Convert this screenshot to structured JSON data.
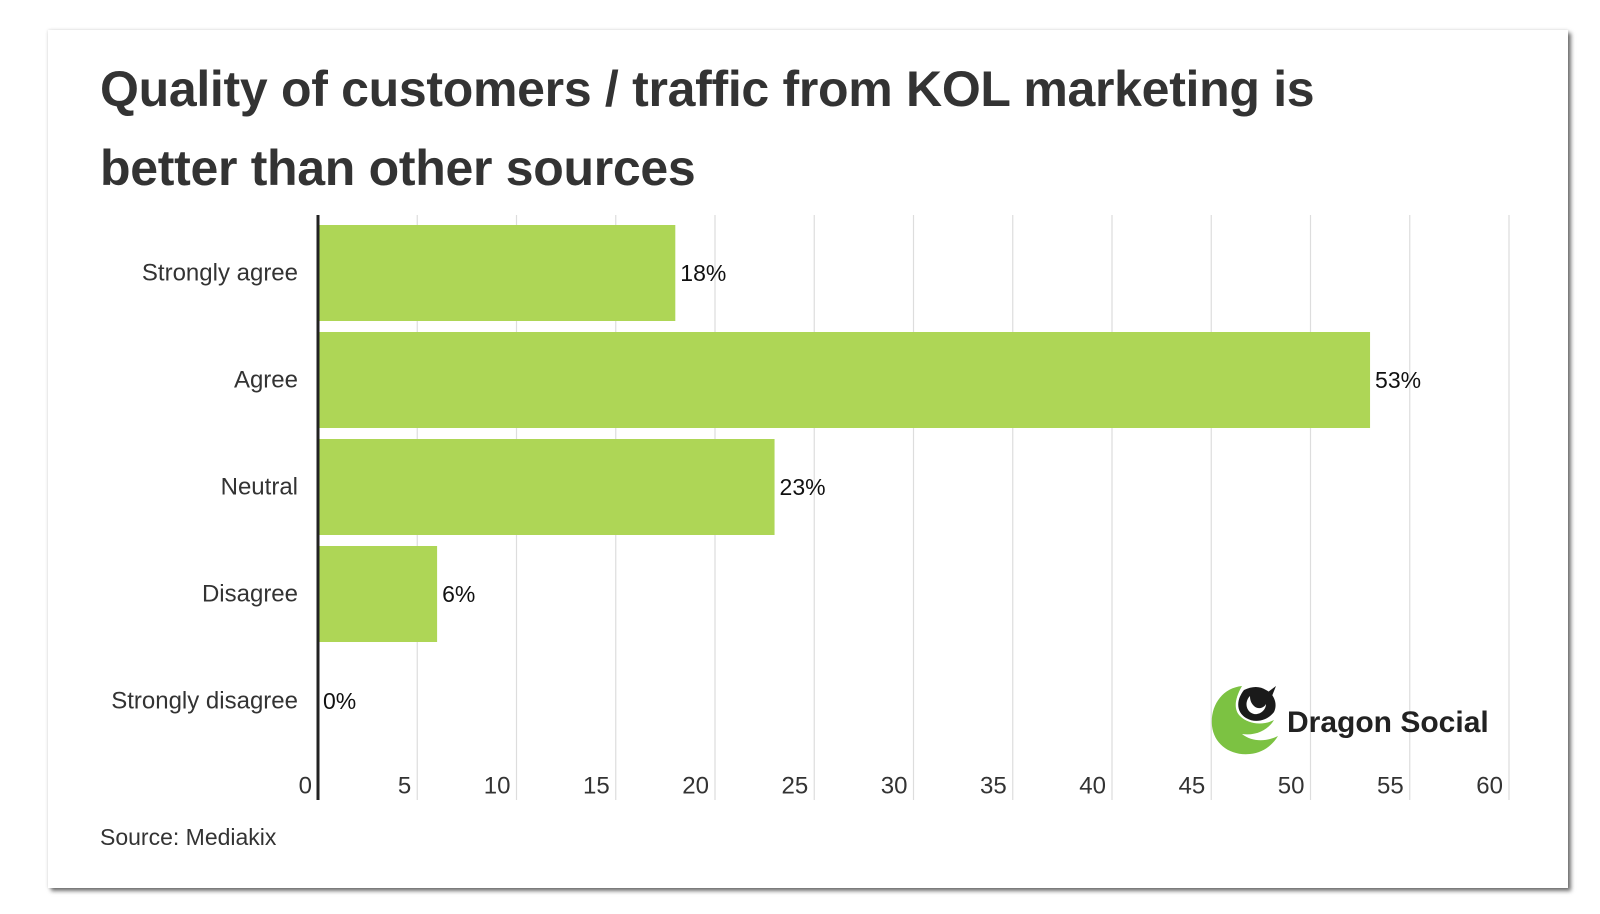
{
  "title_lines": [
    "Quality of customers / traffic from KOL marketing is",
    "better than other sources"
  ],
  "source": "Source: Mediakix",
  "logo": {
    "text": "Dragon Social",
    "icon": "dragon-head-icon"
  },
  "colors": {
    "bar": "#AED656",
    "text": "#333333",
    "grid": "#DDDDDD",
    "axis": "#222222",
    "logo_green": "#7CC242"
  },
  "chart_data": {
    "type": "bar",
    "orientation": "horizontal",
    "title": "Quality of customers / traffic from KOL marketing is better than other sources",
    "categories": [
      "Strongly agree",
      "Agree",
      "Neutral",
      "Disagree",
      "Strongly disagree"
    ],
    "values": [
      18,
      53,
      23,
      6,
      0
    ],
    "data_labels": [
      "18%",
      "53%",
      "23%",
      "6%",
      "0%"
    ],
    "xlim": [
      0,
      60
    ],
    "xticks": [
      0,
      5,
      10,
      15,
      20,
      25,
      30,
      35,
      40,
      45,
      50,
      55,
      60
    ],
    "xlabel": "",
    "ylabel": "",
    "grid": true
  }
}
